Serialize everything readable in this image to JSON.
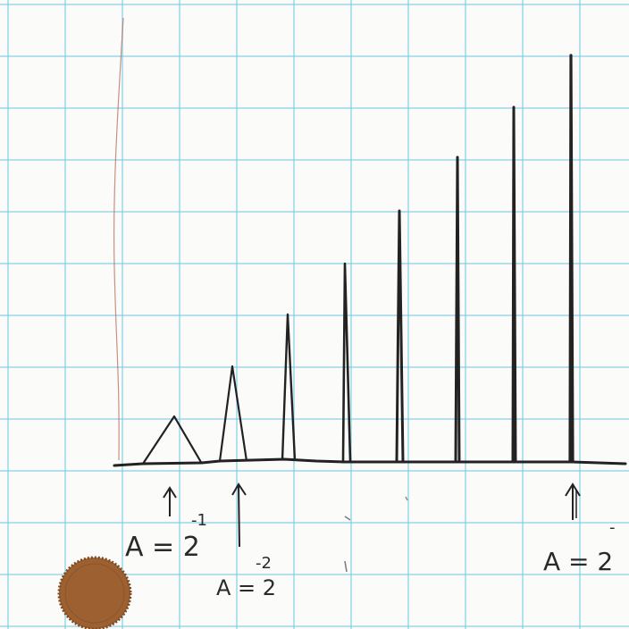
{
  "colors": {
    "paper": "#fbfcfa",
    "grid_lines": "#7cc8e0",
    "ink": "#222222",
    "margin_line": "#b86a5e",
    "penny": "#9a6034"
  },
  "sketch": {
    "description_of_shape": "train of triangular pulses: equal area, each half as wide and twice as tall as the previous, converging to a spike",
    "pulse_areas_relative": [
      1,
      1,
      1,
      1,
      1,
      1,
      1,
      1
    ],
    "pulse_widths_relative": [
      1,
      0.5,
      0.25,
      0.125,
      0.0625,
      0.03125,
      0.015625,
      0.0078125
    ]
  },
  "annotations": {
    "label_1": {
      "base": "A = 2",
      "exponent": "-1"
    },
    "label_2": {
      "base": "A = 2",
      "exponent": "-2"
    },
    "label_3": {
      "base": "A = 2",
      "exponent": "-"
    }
  },
  "objects": {
    "coin": "penny-coin"
  }
}
